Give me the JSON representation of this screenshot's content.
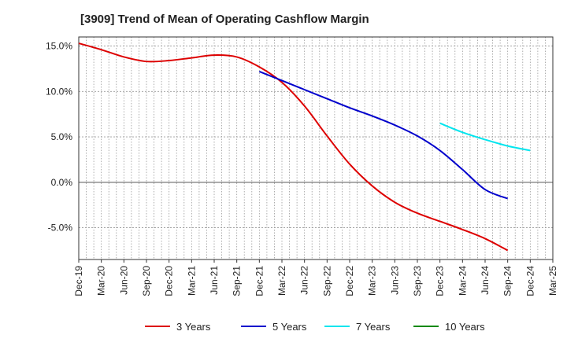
{
  "chart_data": {
    "type": "line",
    "title": "[3909]  Trend of Mean of Operating Cashflow Margin",
    "xlabel": "",
    "ylabel": "",
    "ylim": [
      -8.5,
      16.0
    ],
    "yticks": [
      -5.0,
      0.0,
      5.0,
      10.0,
      15.0
    ],
    "ytick_labels": [
      "-5.0%",
      "0.0%",
      "5.0%",
      "10.0%",
      "15.0%"
    ],
    "x_tick_labels": [
      "Dec-19",
      "Mar-20",
      "Jun-20",
      "Sep-20",
      "Dec-20",
      "Mar-21",
      "Jun-21",
      "Sep-21",
      "Dec-21",
      "Mar-22",
      "Jun-22",
      "Sep-22",
      "Dec-22",
      "Mar-23",
      "Jun-23",
      "Sep-23",
      "Dec-23",
      "Mar-24",
      "Jun-24",
      "Sep-24",
      "Dec-24",
      "Mar-25"
    ],
    "grid": true,
    "legend_position": "bottom",
    "series": [
      {
        "name": "3 Years",
        "color": "#dd0000",
        "start_index": 0,
        "values": [
          15.3,
          14.6,
          13.8,
          13.3,
          13.4,
          13.7,
          14.0,
          13.8,
          12.7,
          11.0,
          8.4,
          5.1,
          2.0,
          -0.4,
          -2.2,
          -3.4,
          -4.3,
          -5.2,
          -6.2,
          -7.5
        ]
      },
      {
        "name": "5 Years",
        "color": "#0000cc",
        "start_index": 8,
        "values": [
          12.2,
          11.2,
          10.2,
          9.2,
          8.2,
          7.3,
          6.3,
          5.1,
          3.5,
          1.4,
          -0.8,
          -1.8
        ]
      },
      {
        "name": "7 Years",
        "color": "#00e5ee",
        "start_index": 16,
        "values": [
          6.5,
          5.5,
          4.7,
          4.0,
          3.5
        ]
      },
      {
        "name": "10 Years",
        "color": "#008800",
        "start_index": 0,
        "values": []
      }
    ]
  }
}
